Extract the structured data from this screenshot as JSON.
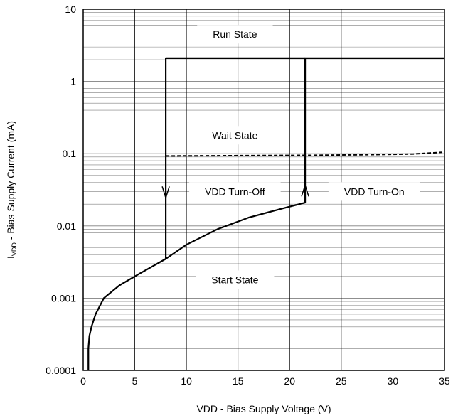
{
  "chart_data": {
    "type": "line",
    "xlabel": "VDD - Bias Supply Voltage (V)",
    "ylabel": {
      "main": "I",
      "sub": "VDD",
      "rest": " - Bias Supply Current (mA)"
    },
    "xlim": [
      0,
      35
    ],
    "ylim": [
      0.0001,
      10
    ],
    "yscale": "log",
    "grid": true,
    "x_ticks": [
      "0",
      "5",
      "10",
      "15",
      "20",
      "25",
      "30",
      "35"
    ],
    "y_ticks": [
      "0.0001",
      "0.001",
      "0.01",
      "0.1",
      "1",
      "10"
    ],
    "series": [
      {
        "style": "solid",
        "points": [
          [
            0.5,
            0.0001
          ],
          [
            0.5,
            0.0002
          ],
          [
            0.6,
            0.0003
          ],
          [
            0.8,
            0.0004
          ],
          [
            1.2,
            0.0006
          ],
          [
            2.0,
            0.001
          ],
          [
            3.5,
            0.0015
          ],
          [
            5.5,
            0.0022
          ],
          [
            8.0,
            0.0035
          ],
          [
            10.0,
            0.0055
          ],
          [
            13.0,
            0.009
          ],
          [
            16.0,
            0.013
          ],
          [
            19.0,
            0.017
          ],
          [
            21.5,
            0.021
          ],
          [
            21.5,
            2.1
          ],
          [
            35.0,
            2.1
          ]
        ]
      },
      {
        "style": "solid",
        "points": [
          [
            21.5,
            2.1
          ],
          [
            8.0,
            2.1
          ],
          [
            8.0,
            0.0035
          ]
        ]
      },
      {
        "style": "dashed",
        "points": [
          [
            8.0,
            0.093
          ],
          [
            15.0,
            0.094
          ],
          [
            22.0,
            0.095
          ],
          [
            28.0,
            0.097
          ],
          [
            32.0,
            0.099
          ],
          [
            35.0,
            0.105
          ]
        ]
      }
    ],
    "arrows": [
      {
        "x": 8.0,
        "y": 0.03,
        "direction": "down"
      },
      {
        "x": 21.5,
        "y": 0.03,
        "direction": "up"
      }
    ],
    "annotations": [
      {
        "text": "Run State",
        "x": 14.7,
        "y": 4.5
      },
      {
        "text": "Wait State",
        "x": 14.7,
        "y": 0.18
      },
      {
        "text": "VDD Turn-Off",
        "x": 14.7,
        "y": 0.03
      },
      {
        "text": "VDD Turn-On",
        "x": 28.2,
        "y": 0.03
      },
      {
        "text": "Start State",
        "x": 14.7,
        "y": 0.0018
      }
    ]
  }
}
